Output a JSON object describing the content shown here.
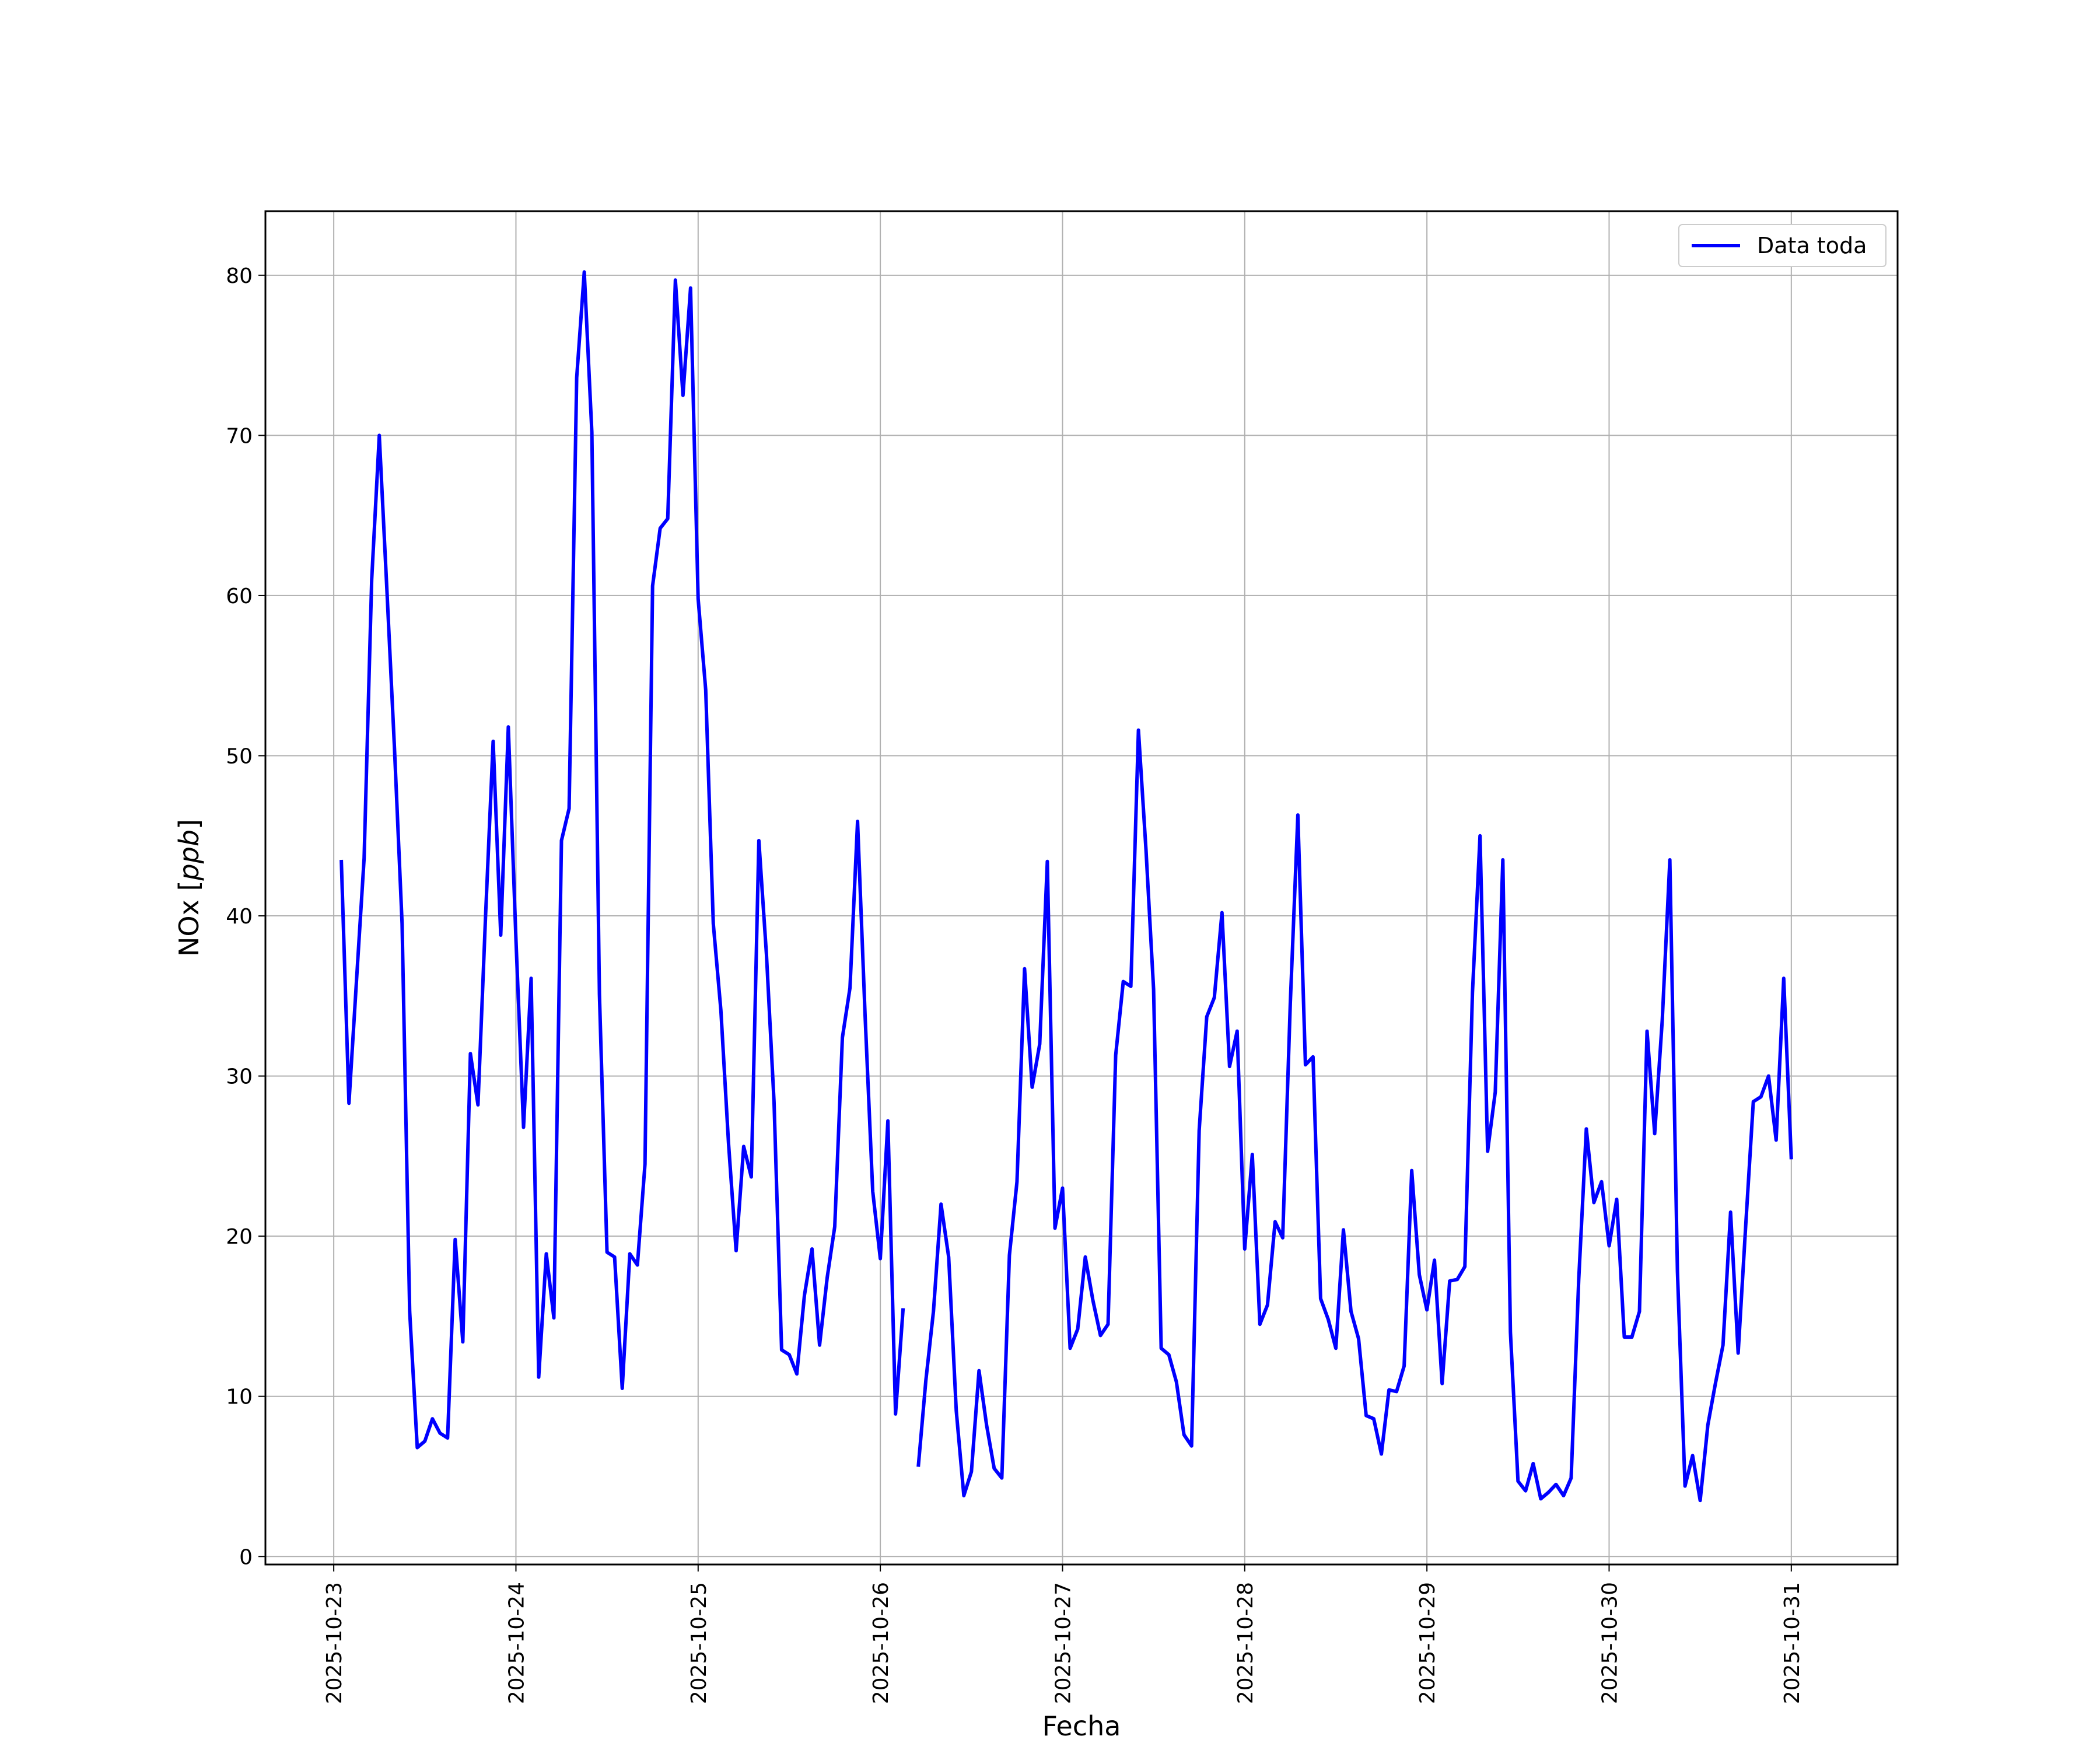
{
  "chart_data": {
    "type": "line",
    "xlabel": "Fecha",
    "ylabel_text": "NOx",
    "ylabel_unit": "ppb",
    "ylim": [
      -0.5,
      84
    ],
    "xlim": [
      "2025-10-22T15:00",
      "2025-10-31T14:00"
    ],
    "yticks": [
      0,
      10,
      20,
      30,
      40,
      50,
      60,
      70,
      80
    ],
    "xticks": [
      "2025-10-23",
      "2025-10-24",
      "2025-10-25",
      "2025-10-26",
      "2025-10-27",
      "2025-10-28",
      "2025-10-29",
      "2025-10-30",
      "2025-10-31"
    ],
    "grid": true,
    "legend_position": "top-right",
    "series": [
      {
        "name": "Data toda",
        "color": "#0000ff",
        "start": "2025-10-23T01:00",
        "interval_hours": 1,
        "values": [
          43.5,
          28.3,
          36.0,
          43.6,
          61.0,
          70.0,
          60.4,
          50.5,
          39.5,
          15.3,
          6.8,
          7.2,
          8.6,
          7.7,
          7.4,
          19.8,
          13.4,
          31.4,
          28.2,
          40.0,
          50.9,
          38.8,
          51.8,
          38.5,
          26.8,
          36.1,
          11.2,
          18.9,
          14.9,
          44.7,
          46.7,
          73.6,
          80.2,
          70.2,
          35.1,
          19.0,
          18.7,
          10.5,
          18.9,
          18.2,
          24.5,
          60.6,
          64.2,
          64.8,
          79.7,
          72.5,
          79.2,
          59.8,
          54.1,
          39.5,
          34.1,
          25.8,
          19.1,
          25.6,
          23.7,
          44.7,
          37.6,
          28.4,
          12.9,
          12.6,
          11.4,
          16.3,
          19.2,
          13.2,
          17.4,
          20.6,
          32.4,
          35.5,
          45.9,
          33.7,
          22.8,
          18.6,
          27.2,
          8.9,
          15.5,
          null,
          5.6,
          11.0,
          15.3,
          22.0,
          18.7,
          9.1,
          3.8,
          5.3,
          11.6,
          8.2,
          5.5,
          4.9,
          18.8,
          23.4,
          36.7,
          29.3,
          32.0,
          43.4,
          20.5,
          23.0,
          13.0,
          14.2,
          18.7,
          16.0,
          13.8,
          14.5,
          31.3,
          35.9,
          35.6,
          51.6,
          44.1,
          35.4,
          13.0,
          12.6,
          10.9,
          7.6,
          6.9,
          26.6,
          33.7,
          34.9,
          40.2,
          30.6,
          32.8,
          19.2,
          25.1,
          14.5,
          15.7,
          20.9,
          19.9,
          34.5,
          46.3,
          30.7,
          31.2,
          16.1,
          14.8,
          13.0,
          20.4,
          15.3,
          13.6,
          8.8,
          8.6,
          6.4,
          10.4,
          10.3,
          11.9,
          24.1,
          17.6,
          15.4,
          18.5,
          10.8,
          17.2,
          17.3,
          18.1,
          35.2,
          45.0,
          25.3,
          29.0,
          43.5,
          14.0,
          4.7,
          4.1,
          5.8,
          3.6,
          4.0,
          4.5,
          3.8,
          4.9,
          17.3,
          26.7,
          22.1,
          23.4,
          19.4,
          22.3,
          13.7,
          13.7,
          15.3,
          32.8,
          26.4,
          33.5,
          43.5,
          17.8,
          4.4,
          6.3,
          3.5,
          8.2,
          10.8,
          13.2,
          21.5,
          12.7,
          20.7,
          28.4,
          28.7,
          30.0,
          26.0,
          36.1,
          24.8
        ]
      }
    ]
  }
}
